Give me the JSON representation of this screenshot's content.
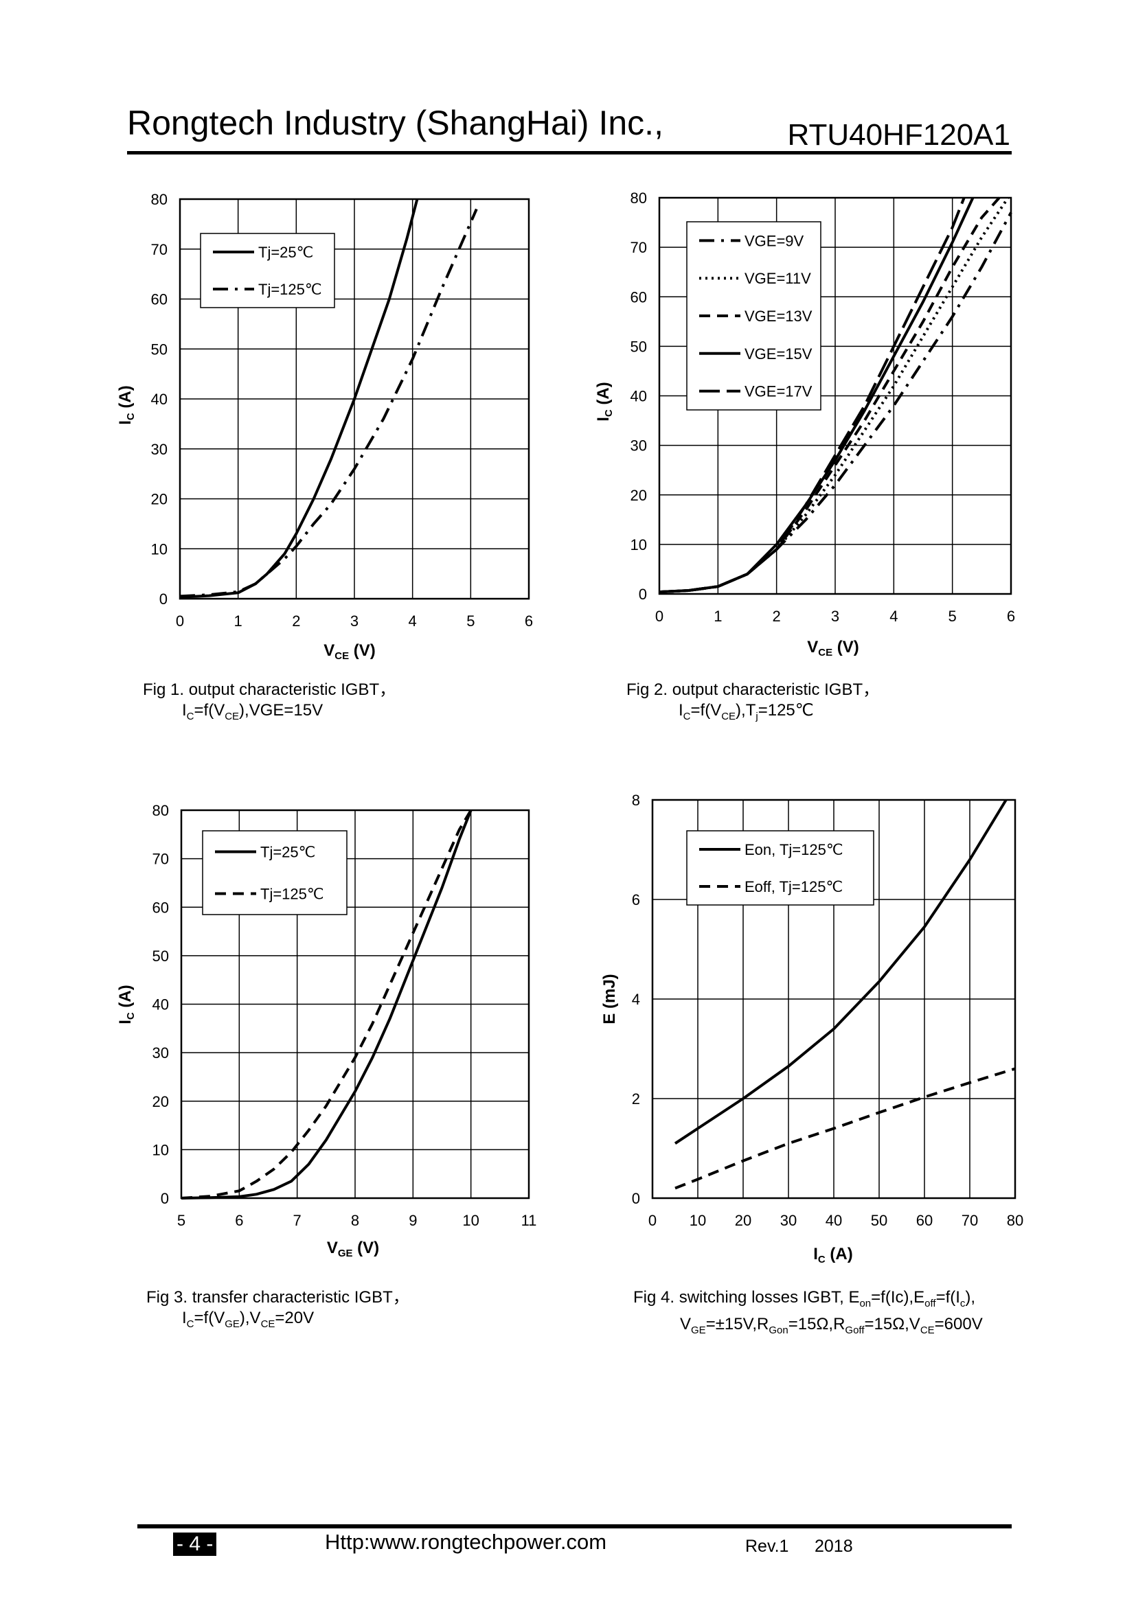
{
  "header": {
    "company": "Rongtech Industry (ShangHai) Inc.,",
    "part_number": "RTU40HF120A1"
  },
  "footer": {
    "page": "- 4 -",
    "url": "Http:www.rongtechpower.com",
    "revision": "Rev.1",
    "year": "2018"
  },
  "captions": {
    "fig1": {
      "line1": "Fig 1. output characteristic IGBT，",
      "line2_a": "I",
      "line2_b": "C",
      "line2_c": "=f(V",
      "line2_d": "CE",
      "line2_e": "),VGE=15V"
    },
    "fig2": {
      "line1": "Fig 2. output characteristic IGBT，",
      "line2_a": "I",
      "line2_b": "C",
      "line2_c": "=f(V",
      "line2_d": "CE",
      "line2_e": "),T",
      "line2_f": "j",
      "line2_g": "=125℃"
    },
    "fig3": {
      "line1": "Fig 3. transfer characteristic IGBT，",
      "line2_a": "I",
      "line2_b": "C",
      "line2_c": "=f(V",
      "line2_d": "GE",
      "line2_e": "),V",
      "line2_f": "CE",
      "line2_g": "=20V"
    },
    "fig4": {
      "line1_a": "Fig 4. switching losses IGBT, E",
      "line1_b": "on",
      "line1_c": "=f(Ic),E",
      "line1_d": "off",
      "line1_e": "=f(I",
      "line1_f": "c",
      "line1_g": "),",
      "line2_a": "V",
      "line2_b": "GE",
      "line2_c": "=±15V,R",
      "line2_d": "Gon",
      "line2_e": "=15Ω,R",
      "line2_f": "Goff",
      "line2_g": "=15Ω,V",
      "line2_h": "CE",
      "line2_i": "=600V"
    }
  },
  "chart_data": [
    {
      "id": "fig1",
      "type": "line",
      "xlabel_main": "V",
      "xlabel_sub": "CE",
      "xlabel_unit": " (V)",
      "ylabel_main": "I",
      "ylabel_sub": "C",
      "ylabel_unit": " (A)",
      "xlim": [
        0,
        6
      ],
      "ylim": [
        0,
        80
      ],
      "xticks": [
        0,
        1,
        2,
        3,
        4,
        5,
        6
      ],
      "yticks": [
        0,
        10,
        20,
        30,
        40,
        50,
        60,
        70,
        80
      ],
      "series": [
        {
          "name": "Tj=25℃",
          "style": "solid",
          "x": [
            0,
            0.5,
            1.0,
            1.3,
            1.5,
            1.8,
            2.0,
            2.3,
            2.6,
            3.0,
            3.3,
            3.6,
            3.9,
            4.08
          ],
          "y": [
            0.3,
            0.6,
            1.2,
            3,
            5,
            9,
            13,
            20,
            28,
            40,
            50,
            60,
            72,
            80
          ]
        },
        {
          "name": "Tj=125℃",
          "style": "dashdot",
          "x": [
            0,
            0.5,
            1.0,
            1.3,
            1.5,
            1.8,
            2.0,
            2.3,
            2.6,
            3.0,
            3.5,
            4.0,
            4.5,
            5.1
          ],
          "y": [
            0.5,
            0.8,
            1.4,
            3,
            5,
            8,
            10.5,
            15,
            19,
            26,
            36,
            48,
            62,
            78
          ]
        }
      ]
    },
    {
      "id": "fig2",
      "type": "line",
      "xlabel_main": "V",
      "xlabel_sub": "CE",
      "xlabel_unit": " (V)",
      "ylabel_main": "I",
      "ylabel_sub": "C",
      "ylabel_unit": " (A)",
      "xlim": [
        0,
        6
      ],
      "ylim": [
        0,
        80
      ],
      "xticks": [
        0,
        1,
        2,
        3,
        4,
        5,
        6
      ],
      "yticks": [
        0,
        10,
        20,
        30,
        40,
        50,
        60,
        70,
        80
      ],
      "series": [
        {
          "name": "VGE=9V",
          "style": "dashdot",
          "x": [
            0,
            0.5,
            1.0,
            1.5,
            2.0,
            2.5,
            3.0,
            3.5,
            4.0,
            4.5,
            5.0,
            5.5,
            6.0
          ],
          "y": [
            0.4,
            0.7,
            1.5,
            4,
            9,
            15,
            22,
            30,
            38,
            47,
            56,
            66,
            77
          ]
        },
        {
          "name": "VGE=11V",
          "style": "dotted",
          "x": [
            0,
            0.5,
            1.0,
            1.5,
            2.0,
            2.5,
            3.0,
            3.5,
            4.0,
            4.5,
            5.0,
            5.5,
            5.95
          ],
          "y": [
            0.4,
            0.7,
            1.5,
            4,
            9,
            16,
            24,
            33,
            42,
            52,
            62,
            72,
            80
          ]
        },
        {
          "name": "VGE=13V",
          "style": "dashed",
          "x": [
            0,
            0.5,
            1.0,
            1.5,
            2.0,
            2.5,
            3.0,
            3.5,
            4.0,
            4.5,
            5.0,
            5.5,
            5.8
          ],
          "y": [
            0.4,
            0.7,
            1.5,
            4,
            9,
            17,
            26,
            35,
            45,
            55,
            66,
            76,
            80
          ]
        },
        {
          "name": "VGE=15V",
          "style": "solid",
          "x": [
            0,
            0.5,
            1.0,
            1.5,
            2.0,
            2.5,
            3.0,
            3.5,
            4.0,
            4.5,
            5.0,
            5.35
          ],
          "y": [
            0.4,
            0.7,
            1.5,
            4,
            10,
            18,
            27,
            37,
            48,
            59,
            71,
            80
          ]
        },
        {
          "name": "VGE=17V",
          "style": "longdash",
          "x": [
            0,
            0.5,
            1.0,
            1.5,
            2.0,
            2.5,
            3.0,
            3.5,
            4.0,
            4.5,
            5.0,
            5.2
          ],
          "y": [
            0.4,
            0.7,
            1.5,
            4,
            9,
            18,
            28,
            38,
            50,
            62,
            74,
            80
          ]
        }
      ]
    },
    {
      "id": "fig3",
      "type": "line",
      "xlabel_main": "V",
      "xlabel_sub": "GE",
      "xlabel_unit": " (V)",
      "ylabel_main": "I",
      "ylabel_sub": "C",
      "ylabel_unit": " (A)",
      "xlim": [
        5,
        11
      ],
      "ylim": [
        0,
        80
      ],
      "xticks": [
        5,
        6,
        7,
        8,
        9,
        10,
        11
      ],
      "yticks": [
        0,
        10,
        20,
        30,
        40,
        50,
        60,
        70,
        80
      ],
      "series": [
        {
          "name": "Tj=25℃",
          "style": "solid",
          "x": [
            5.0,
            5.5,
            6.0,
            6.3,
            6.6,
            6.9,
            7.2,
            7.5,
            7.8,
            8.0,
            8.3,
            8.6,
            8.9,
            9.2,
            9.5,
            9.8,
            10.0
          ],
          "y": [
            0,
            0.1,
            0.3,
            0.8,
            1.8,
            3.5,
            7,
            12,
            18,
            22,
            29,
            37,
            46,
            55,
            64,
            74,
            80
          ]
        },
        {
          "name": "Tj=125℃",
          "style": "dashed",
          "x": [
            5.0,
            5.5,
            6.0,
            6.3,
            6.6,
            6.9,
            7.2,
            7.5,
            7.8,
            8.0,
            8.3,
            8.6,
            8.9,
            9.2,
            9.5,
            9.8,
            10.0
          ],
          "y": [
            0,
            0.4,
            1.5,
            3.5,
            6,
            9.5,
            14,
            19,
            25,
            29,
            36,
            44,
            52,
            60,
            68,
            76,
            80
          ]
        }
      ]
    },
    {
      "id": "fig4",
      "type": "line",
      "xlabel_main": "I",
      "xlabel_sub": "C",
      "xlabel_unit": " (A)",
      "ylabel_main": "E (mJ)",
      "ylabel_sub": "",
      "ylabel_unit": "",
      "xlim": [
        0,
        80
      ],
      "ylim": [
        0,
        8
      ],
      "xticks": [
        0,
        10,
        20,
        30,
        40,
        50,
        60,
        70,
        80
      ],
      "yticks": [
        0,
        2,
        4,
        6,
        8
      ],
      "series": [
        {
          "name": "Eon, Tj=125℃",
          "style": "solid",
          "x": [
            5,
            10,
            20,
            30,
            40,
            50,
            60,
            70,
            78
          ],
          "y": [
            1.1,
            1.4,
            2.0,
            2.65,
            3.4,
            4.35,
            5.45,
            6.8,
            8.0
          ]
        },
        {
          "name": "Eoff, Tj=125℃",
          "style": "dashed",
          "x": [
            5,
            10,
            20,
            30,
            40,
            50,
            60,
            70,
            80
          ],
          "y": [
            0.2,
            0.38,
            0.75,
            1.1,
            1.4,
            1.72,
            2.03,
            2.32,
            2.6
          ]
        }
      ]
    }
  ]
}
